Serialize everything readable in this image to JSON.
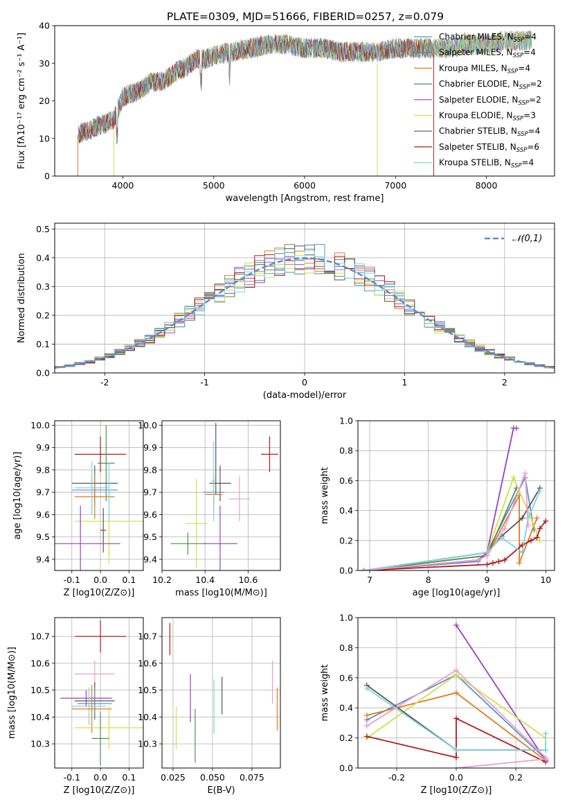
{
  "figure_title": "PLATE=0309, MJD=51666, FIBERID=0257, z=0.079",
  "chart_data": [
    {
      "id": "spectrum",
      "type": "line",
      "title": "PLATE=0309, MJD=51666, FIBERID=0257, z=0.079",
      "xlabel": "wavelength [Angstrom, rest frame]",
      "ylabel": "Flux [fλ10⁻¹⁷ erg cm⁻² s⁻¹ A⁻¹]",
      "xlim": [
        3250,
        8750
      ],
      "ylim": [
        0,
        40
      ],
      "xticks": [
        4000,
        5000,
        6000,
        7000,
        8000
      ],
      "yticks": [
        0,
        10,
        20,
        30,
        40
      ],
      "grid": false,
      "legend": "upper-right",
      "series": [
        {
          "name": "Chabrier MILES, NSSP=4",
          "color": "#5a8fc7"
        },
        {
          "name": "Salpeter MILES, NSSP=4",
          "color": "#5c7fa3"
        },
        {
          "name": "Kroupa MILES, NSSP=4",
          "color": "#e07a1f"
        },
        {
          "name": "Chabrier ELODIE, NSSP=2",
          "color": "#4f8f50"
        },
        {
          "name": "Salpeter ELODIE, NSSP=2",
          "color": "#9a3fc0"
        },
        {
          "name": "Kroupa ELODIE, NSSP=3",
          "color": "#cde04a"
        },
        {
          "name": "Chabrier STELIB, NSSP=4",
          "color": "#555555"
        },
        {
          "name": "Salpeter STELIB, NSSP=6",
          "color": "#b01a1a"
        },
        {
          "name": "Kroupa STELIB, NSSP=4",
          "color": "#7fd3df"
        }
      ],
      "continuum": {
        "x": [
          3500,
          3600,
          3700,
          3800,
          3900,
          4000,
          4100,
          4200,
          4300,
          4400,
          4500,
          4600,
          4700,
          4800,
          4900,
          5000,
          5200,
          5400,
          5600,
          5800,
          6000,
          6200,
          6400,
          6600,
          6800,
          7000,
          7200,
          7400,
          7600,
          7800,
          8000,
          8200,
          8400,
          8500
        ],
        "y": [
          11,
          12,
          13,
          14,
          15,
          21,
          22,
          23,
          25,
          25,
          26,
          28,
          29,
          31,
          31,
          32,
          33,
          34,
          35,
          35,
          34,
          34,
          33,
          33,
          33,
          34,
          34,
          34,
          34,
          35,
          35,
          36,
          36,
          36
        ]
      }
    },
    {
      "id": "residuals",
      "type": "histogram",
      "xlabel": "(data-model)/error",
      "ylabel": "Normed distribution",
      "xlim": [
        -2.5,
        2.5
      ],
      "ylim": [
        0,
        0.52
      ],
      "xticks": [
        -2,
        -1,
        0,
        1,
        2
      ],
      "yticks": [
        0.0,
        0.1,
        0.2,
        0.3,
        0.4,
        0.5
      ],
      "grid": true,
      "legend": "upper-right",
      "reference_curve": {
        "name": "𝒩(0,1)",
        "color": "#5a8fc7",
        "style": "dashed"
      },
      "bin_width": 0.1
    },
    {
      "id": "age-vs-Z",
      "type": "errorbar",
      "xlabel": "Z [log10(Z/Z⊙)]",
      "ylabel": "age [log10(age/yr)]",
      "xlim": [
        -0.16,
        0.15
      ],
      "ylim": [
        9.35,
        10.02
      ],
      "xticks": [
        -0.1,
        0.0,
        0.1
      ],
      "yticks": [
        9.4,
        9.5,
        9.6,
        9.7,
        9.8,
        9.9,
        10.0
      ],
      "grid": true,
      "points": [
        {
          "x": 0.0,
          "xerr": 0.09,
          "y": 9.87,
          "yerr": 0.08,
          "color": "#b01a1a"
        },
        {
          "x": -0.02,
          "xerr": 0.08,
          "y": 9.74,
          "yerr": 0.08,
          "color": "#555555"
        },
        {
          "x": 0.02,
          "xerr": 0.03,
          "y": 9.83,
          "yerr": 0.17,
          "color": "#4f8f50"
        },
        {
          "x": -0.02,
          "xerr": 0.08,
          "y": 9.71,
          "yerr": 0.07,
          "color": "#5a8fc7"
        },
        {
          "x": -0.03,
          "xerr": 0.07,
          "y": 9.7,
          "yerr": 0.08,
          "color": "#e8a0c8"
        },
        {
          "x": -0.02,
          "xerr": 0.07,
          "y": 9.68,
          "yerr": 0.1,
          "color": "#e07a1f"
        },
        {
          "x": -0.03,
          "xerr": 0.06,
          "y": 9.72,
          "yerr": 0.12,
          "color": "#7fd3df"
        },
        {
          "x": 0.03,
          "xerr": 0.12,
          "y": 9.57,
          "yerr": 0.19,
          "color": "#cde04a"
        },
        {
          "x": 0.01,
          "xerr": 0.01,
          "y": 9.53,
          "yerr": 0.1,
          "color": "#555555"
        },
        {
          "x": -0.07,
          "xerr": 0.14,
          "y": 9.47,
          "yerr": 0.17,
          "color": "#9a3fc0"
        },
        {
          "x": 0.03,
          "xerr": 0.02,
          "y": 9.7,
          "yerr": 0.13,
          "color": "#7fd3df"
        }
      ]
    },
    {
      "id": "age-vs-mass",
      "type": "errorbar",
      "xlabel": "mass [log10(M/M⊙)]",
      "ylabel": "",
      "xlim": [
        10.2,
        10.75
      ],
      "ylim": [
        9.35,
        10.02
      ],
      "xticks": [
        10.2,
        10.4,
        10.6
      ],
      "yticks": [
        9.4,
        9.5,
        9.6,
        9.7,
        9.8,
        9.9,
        10.0
      ],
      "grid": true,
      "points": [
        {
          "x": 10.7,
          "xerr": 0.04,
          "y": 9.87,
          "yerr": 0.08,
          "color": "#b01a1a"
        },
        {
          "x": 10.47,
          "xerr": 0.05,
          "y": 9.74,
          "yerr": 0.08,
          "color": "#555555"
        },
        {
          "x": 10.45,
          "xerr": 0.0,
          "y": 9.85,
          "yerr": 0.16,
          "color": "#555555"
        },
        {
          "x": 10.44,
          "xerr": 0.05,
          "y": 9.7,
          "yerr": 0.07,
          "color": "#5a8fc7"
        },
        {
          "x": 10.44,
          "xerr": 0.04,
          "y": 9.69,
          "yerr": 0.08,
          "color": "#e07a1f"
        },
        {
          "x": 10.56,
          "xerr": 0.05,
          "y": 9.67,
          "yerr": 0.1,
          "color": "#e8a0c8"
        },
        {
          "x": 10.44,
          "xerr": 0.01,
          "y": 9.75,
          "yerr": 0.18,
          "color": "#7fd3df"
        },
        {
          "x": 10.36,
          "xerr": 0.05,
          "y": 9.56,
          "yerr": 0.2,
          "color": "#cde04a"
        },
        {
          "x": 10.32,
          "xerr": 0.08,
          "y": 9.47,
          "yerr": 0.05,
          "color": "#4f8f50"
        },
        {
          "x": 10.47,
          "xerr": 0.08,
          "y": 9.47,
          "yerr": 0.17,
          "color": "#9a3fc0"
        }
      ]
    },
    {
      "id": "massweight-vs-age",
      "type": "line",
      "xlabel": "age [log10(age/yr)]",
      "ylabel": "mass weight",
      "xlim": [
        6.8,
        10.15
      ],
      "ylim": [
        0,
        1.0
      ],
      "xticks": [
        7,
        8,
        9,
        10
      ],
      "yticks": [
        0.0,
        0.2,
        0.4,
        0.6,
        0.8,
        1.0
      ],
      "grid": true,
      "series": [
        {
          "color": "#5a8fc7",
          "x": [
            6.9,
            8.85,
            9.0,
            9.65,
            9.8
          ],
          "y": [
            0.0,
            0.06,
            0.12,
            0.62,
            0.27
          ]
        },
        {
          "color": "#e07a1f",
          "x": [
            6.9,
            8.85,
            9.0,
            9.55,
            9.55,
            9.85
          ],
          "y": [
            0.0,
            0.07,
            0.1,
            0.5,
            0.05,
            0.35
          ]
        },
        {
          "color": "#4f8f50",
          "x": [
            6.9,
            9.0,
            9.5
          ],
          "y": [
            0.0,
            0.1,
            0.55
          ]
        },
        {
          "color": "#9a3fc0",
          "x": [
            6.9,
            8.85,
            9.0,
            9.45,
            9.5
          ],
          "y": [
            0.0,
            0.07,
            0.12,
            0.95,
            0.95
          ]
        },
        {
          "color": "#cde04a",
          "x": [
            6.9,
            9.0,
            9.45,
            9.75,
            9.9
          ],
          "y": [
            0.0,
            0.12,
            0.62,
            0.35,
            0.2
          ]
        },
        {
          "color": "#555555",
          "x": [
            6.9,
            9.0,
            9.25,
            9.6,
            9.9
          ],
          "y": [
            0.0,
            0.12,
            0.23,
            0.35,
            0.55
          ]
        },
        {
          "color": "#b01a1a",
          "x": [
            6.9,
            9.0,
            9.1,
            9.2,
            9.3,
            9.6,
            9.75,
            9.85,
            9.9,
            10.0
          ],
          "y": [
            0.0,
            0.04,
            0.05,
            0.06,
            0.07,
            0.17,
            0.2,
            0.22,
            0.28,
            0.33
          ]
        },
        {
          "color": "#7fd3df",
          "x": [
            6.9,
            9.0,
            9.25,
            9.6,
            9.7,
            9.9
          ],
          "y": [
            0.0,
            0.12,
            0.22,
            0.12,
            0.35,
            0.53
          ]
        },
        {
          "color": "#e8a0c8",
          "x": [
            6.9,
            8.85,
            9.0,
            9.3,
            9.65,
            9.7
          ],
          "y": [
            0.0,
            0.07,
            0.1,
            0.28,
            0.65,
            0.3
          ]
        }
      ]
    },
    {
      "id": "mass-vs-Z",
      "type": "errorbar",
      "xlabel": "Z [log10(Z/Z⊙)]",
      "ylabel": "mass [log10(M/M⊙)]",
      "xlim": [
        -0.16,
        0.15
      ],
      "ylim": [
        10.21,
        10.77
      ],
      "xticks": [
        -0.1,
        0.0,
        0.1
      ],
      "yticks": [
        10.3,
        10.4,
        10.5,
        10.6,
        10.7
      ],
      "grid": true,
      "points": [
        {
          "x": 0.0,
          "xerr": 0.09,
          "y": 10.7,
          "yerr": 0.06,
          "color": "#b01a1a"
        },
        {
          "x": -0.02,
          "xerr": 0.07,
          "y": 10.56,
          "yerr": 0.05,
          "color": "#e8a0c8"
        },
        {
          "x": -0.05,
          "xerr": 0.09,
          "y": 10.47,
          "yerr": 0.03,
          "color": "#9a3fc0"
        },
        {
          "x": -0.02,
          "xerr": 0.07,
          "y": 10.46,
          "yerr": 0.07,
          "color": "#555555"
        },
        {
          "x": -0.02,
          "xerr": 0.06,
          "y": 10.45,
          "yerr": 0.06,
          "color": "#5a8fc7"
        },
        {
          "x": -0.04,
          "xerr": 0.06,
          "y": 10.44,
          "yerr": 0.07,
          "color": "#7fd3df"
        },
        {
          "x": -0.03,
          "xerr": 0.07,
          "y": 10.43,
          "yerr": 0.09,
          "color": "#e07a1f"
        },
        {
          "x": 0.03,
          "xerr": 0.12,
          "y": 10.36,
          "yerr": 0.08,
          "color": "#cde04a"
        },
        {
          "x": 0.0,
          "xerr": 0.03,
          "y": 10.32,
          "yerr": 0.1,
          "color": "#4f8f50"
        }
      ]
    },
    {
      "id": "mass-vs-EBV",
      "type": "errorbar",
      "xlabel": "E(B-V)",
      "ylabel": "",
      "xlim": [
        0.018,
        0.093
      ],
      "ylim": [
        10.21,
        10.77
      ],
      "xticks": [
        0.025,
        0.05,
        0.075
      ],
      "xtick_labels": [
        "0.025",
        "0.050",
        "0.075"
      ],
      "yticks": [
        10.3,
        10.4,
        10.5,
        10.6,
        10.7
      ],
      "grid": true,
      "points": [
        {
          "x": 0.023,
          "xerr": 0,
          "y": 10.69,
          "yerr": 0.06,
          "color": "#b01a1a"
        },
        {
          "x": 0.027,
          "xerr": 0,
          "y": 10.36,
          "yerr": 0.08,
          "color": "#cde04a"
        },
        {
          "x": 0.036,
          "xerr": 0,
          "y": 10.47,
          "yerr": 0.09,
          "color": "#9a3fc0"
        },
        {
          "x": 0.039,
          "xerr": 0,
          "y": 10.33,
          "yerr": 0.1,
          "color": "#4f8f50"
        },
        {
          "x": 0.051,
          "xerr": 0,
          "y": 10.44,
          "yerr": 0.1,
          "color": "#7fd3df"
        },
        {
          "x": 0.056,
          "xerr": 0,
          "y": 10.48,
          "yerr": 0.07,
          "color": "#555555"
        },
        {
          "x": 0.088,
          "xerr": 0,
          "y": 10.53,
          "yerr": 0.08,
          "color": "#e8a0c8"
        },
        {
          "x": 0.091,
          "xerr": 0,
          "y": 10.43,
          "yerr": 0.08,
          "color": "#e07a1f"
        }
      ]
    },
    {
      "id": "massweight-vs-Z",
      "type": "line",
      "xlabel": "Z [log10(Z/Z⊙)]",
      "ylabel": "mass weight",
      "xlim": [
        -0.33,
        0.33
      ],
      "ylim": [
        0,
        1.0
      ],
      "xticks": [
        -0.2,
        0.0,
        0.2
      ],
      "yticks": [
        0.0,
        0.2,
        0.4,
        0.6,
        0.8,
        1.0
      ],
      "grid": true,
      "series": [
        {
          "color": "#5a8fc7",
          "x": [
            -0.3,
            0.0,
            0.3
          ],
          "y": [
            0.32,
            0.62,
            0.06
          ]
        },
        {
          "color": "#e07a1f",
          "x": [
            -0.3,
            0.0,
            0.3
          ],
          "y": [
            0.35,
            0.5,
            0.05
          ]
        },
        {
          "color": "#9a3fc0",
          "x": [
            0.0,
            0.3
          ],
          "y": [
            0.95,
            0.05
          ]
        },
        {
          "color": "#cde04a",
          "x": [
            -0.3,
            0.0,
            0.3
          ],
          "y": [
            0.2,
            0.62,
            0.2
          ]
        },
        {
          "color": "#555555",
          "x": [
            -0.3,
            0.0,
            0.3
          ],
          "y": [
            0.55,
            0.12,
            0.12
          ]
        },
        {
          "color": "#b01a1a",
          "x": [
            -0.3,
            0.0,
            0.0,
            0.3
          ],
          "y": [
            0.21,
            0.07,
            0.33,
            0.04
          ]
        },
        {
          "color": "#7fd3df",
          "x": [
            -0.3,
            0.0,
            0.3,
            0.3
          ],
          "y": [
            0.53,
            0.12,
            0.12,
            0.23
          ]
        },
        {
          "color": "#e8a0c8",
          "x": [
            -0.3,
            0.0,
            0.3
          ],
          "y": [
            0.28,
            0.65,
            0.07
          ]
        },
        {
          "color": "#e8a0c8",
          "x": [
            0.0,
            0.3
          ],
          "y": [
            0.0,
            0.06
          ]
        }
      ]
    }
  ]
}
